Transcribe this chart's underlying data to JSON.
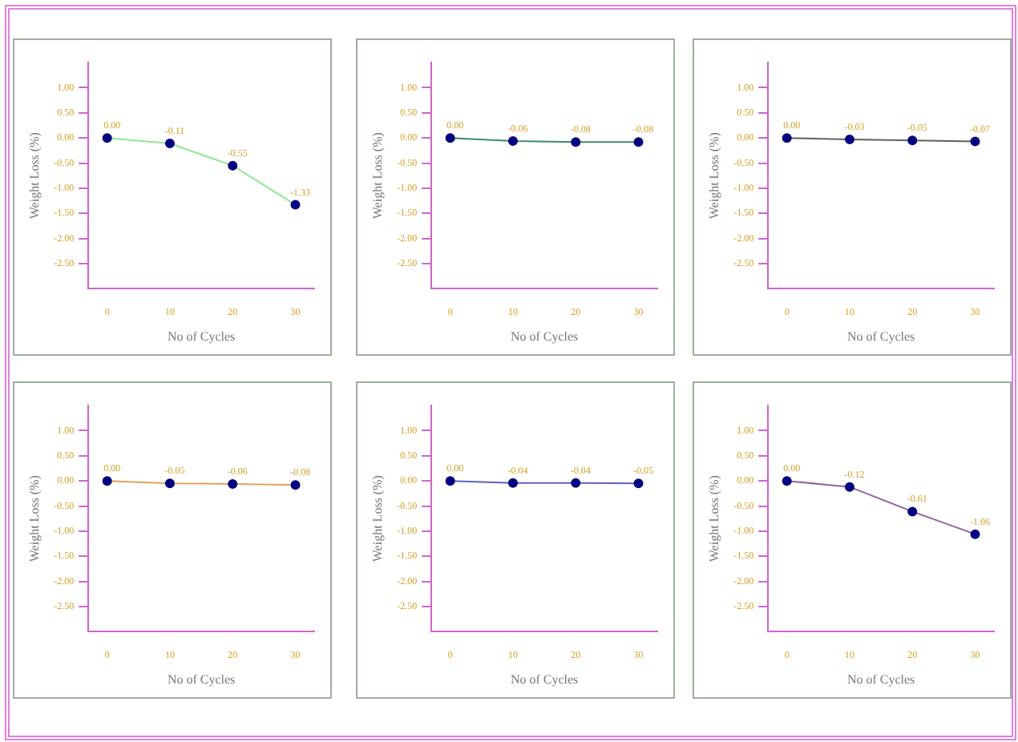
{
  "chart_data": [
    {
      "type": "line",
      "xlabel": "No of Cycles",
      "ylabel": "Weight Loss (%)",
      "x": [
        0,
        10,
        20,
        30
      ],
      "xlim": [
        -3,
        33
      ],
      "xticks": [
        0,
        10,
        20,
        30
      ],
      "ylim": [
        -3,
        1.5
      ],
      "yticks": [
        {
          "value": 1,
          "label": "1.00"
        },
        {
          "value": 0.5,
          "label": "0.50"
        },
        {
          "value": 0,
          "label": "0.00"
        },
        {
          "value": -0.5,
          "label": "-0.50"
        },
        {
          "value": -1,
          "label": "-1.00"
        },
        {
          "value": -1.5,
          "label": "-1.50"
        },
        {
          "value": -2,
          "label": "-2.00"
        },
        {
          "value": -2.5,
          "label": "-2.50"
        }
      ],
      "grid": false,
      "marker": "circle",
      "series": [
        {
          "color": "#90e890",
          "values": [
            0,
            -0.11,
            -0.55,
            -1.33
          ],
          "value_labels": [
            "0.00",
            "-0.11",
            "-0.55",
            "-1.33"
          ]
        }
      ]
    },
    {
      "type": "line",
      "xlabel": "No of Cycles",
      "ylabel": "Weight Loss (%)",
      "x": [
        0,
        10,
        20,
        30
      ],
      "xlim": [
        -3,
        33
      ],
      "xticks": [
        0,
        10,
        20,
        30
      ],
      "ylim": [
        -3,
        1.5
      ],
      "yticks": [
        {
          "value": 1,
          "label": "1.00"
        },
        {
          "value": 0.5,
          "label": "0.50"
        },
        {
          "value": 0,
          "label": "0.00"
        },
        {
          "value": -0.5,
          "label": "-0.50"
        },
        {
          "value": -1,
          "label": "-1.00"
        },
        {
          "value": -1.5,
          "label": "-1.50"
        },
        {
          "value": -2,
          "label": "-2.00"
        },
        {
          "value": -2.5,
          "label": "-2.50"
        }
      ],
      "grid": false,
      "marker": "circle",
      "series": [
        {
          "color": "#3c8c6c",
          "values": [
            0,
            -0.06,
            -0.08,
            -0.08
          ],
          "value_labels": [
            "0.00",
            "-0.06",
            "-0.08",
            "-0.08"
          ]
        }
      ]
    },
    {
      "type": "line",
      "xlabel": "No of Cycles",
      "ylabel": "Weight Loss (%)",
      "x": [
        0,
        10,
        20,
        30
      ],
      "xlim": [
        -3,
        33
      ],
      "xticks": [
        0,
        10,
        20,
        30
      ],
      "ylim": [
        -3,
        1.5
      ],
      "yticks": [
        {
          "value": 1,
          "label": "1.00"
        },
        {
          "value": 0.5,
          "label": "0.50"
        },
        {
          "value": 0,
          "label": "0.00"
        },
        {
          "value": -0.5,
          "label": "-0.50"
        },
        {
          "value": -1,
          "label": "-1.00"
        },
        {
          "value": -1.5,
          "label": "-1.50"
        },
        {
          "value": -2,
          "label": "-2.00"
        },
        {
          "value": -2.5,
          "label": "-2.50"
        }
      ],
      "grid": false,
      "marker": "circle",
      "series": [
        {
          "color": "#606060",
          "values": [
            0,
            -0.03,
            -0.05,
            -0.07
          ],
          "value_labels": [
            "0.00",
            "-0.03",
            "-0.05",
            "-0.07"
          ]
        }
      ]
    },
    {
      "type": "line",
      "xlabel": "No of Cycles",
      "ylabel": "Weight Loss (%)",
      "x": [
        0,
        10,
        20,
        30
      ],
      "xlim": [
        -3,
        33
      ],
      "xticks": [
        0,
        10,
        20,
        30
      ],
      "ylim": [
        -3,
        1.5
      ],
      "yticks": [
        {
          "value": 1,
          "label": "1.00"
        },
        {
          "value": 0.5,
          "label": "0.50"
        },
        {
          "value": 0,
          "label": "0.00"
        },
        {
          "value": -0.5,
          "label": "-0.50"
        },
        {
          "value": -1,
          "label": "-1.00"
        },
        {
          "value": -1.5,
          "label": "-1.50"
        },
        {
          "value": -2,
          "label": "-2.00"
        },
        {
          "value": -2.5,
          "label": "-2.50"
        }
      ],
      "grid": false,
      "marker": "circle",
      "series": [
        {
          "color": "#e0a060",
          "values": [
            0,
            -0.05,
            -0.06,
            -0.08
          ],
          "value_labels": [
            "0.00",
            "-0.05",
            "-0.06",
            "-0.08"
          ]
        }
      ]
    },
    {
      "type": "line",
      "xlabel": "No of Cycles",
      "ylabel": "Weight Loss (%)",
      "x": [
        0,
        10,
        20,
        30
      ],
      "xlim": [
        -3,
        33
      ],
      "xticks": [
        0,
        10,
        20,
        30
      ],
      "ylim": [
        -3,
        1.5
      ],
      "yticks": [
        {
          "value": 1,
          "label": "1.00"
        },
        {
          "value": 0.5,
          "label": "0.50"
        },
        {
          "value": 0,
          "label": "0.00"
        },
        {
          "value": -0.5,
          "label": "-0.50"
        },
        {
          "value": -1,
          "label": "-1.00"
        },
        {
          "value": -1.5,
          "label": "-1.50"
        },
        {
          "value": -2,
          "label": "-2.00"
        },
        {
          "value": -2.5,
          "label": "-2.50"
        }
      ],
      "grid": false,
      "marker": "circle",
      "series": [
        {
          "color": "#6060c0",
          "values": [
            0,
            -0.04,
            -0.04,
            -0.05
          ],
          "value_labels": [
            "0.00",
            "-0.04",
            "-0.04",
            "-0.05"
          ]
        }
      ]
    },
    {
      "type": "line",
      "xlabel": "No of Cycles",
      "ylabel": "Weight Loss (%)",
      "x": [
        0,
        10,
        20,
        30
      ],
      "xlim": [
        -3,
        33
      ],
      "xticks": [
        0,
        10,
        20,
        30
      ],
      "ylim": [
        -3,
        1.5
      ],
      "yticks": [
        {
          "value": 1,
          "label": "1.00"
        },
        {
          "value": 0.5,
          "label": "0.50"
        },
        {
          "value": 0,
          "label": "0.00"
        },
        {
          "value": -0.5,
          "label": "-0.50"
        },
        {
          "value": -1,
          "label": "-1.00"
        },
        {
          "value": -1.5,
          "label": "-1.50"
        },
        {
          "value": -2,
          "label": "-2.00"
        },
        {
          "value": -2.5,
          "label": "-2.50"
        }
      ],
      "grid": false,
      "marker": "circle",
      "series": [
        {
          "color": "#9060a0",
          "values": [
            0,
            -0.12,
            -0.61,
            -1.06
          ],
          "value_labels": [
            "0.00",
            "-0.12",
            "-0.61",
            "-1.06"
          ]
        }
      ]
    }
  ]
}
